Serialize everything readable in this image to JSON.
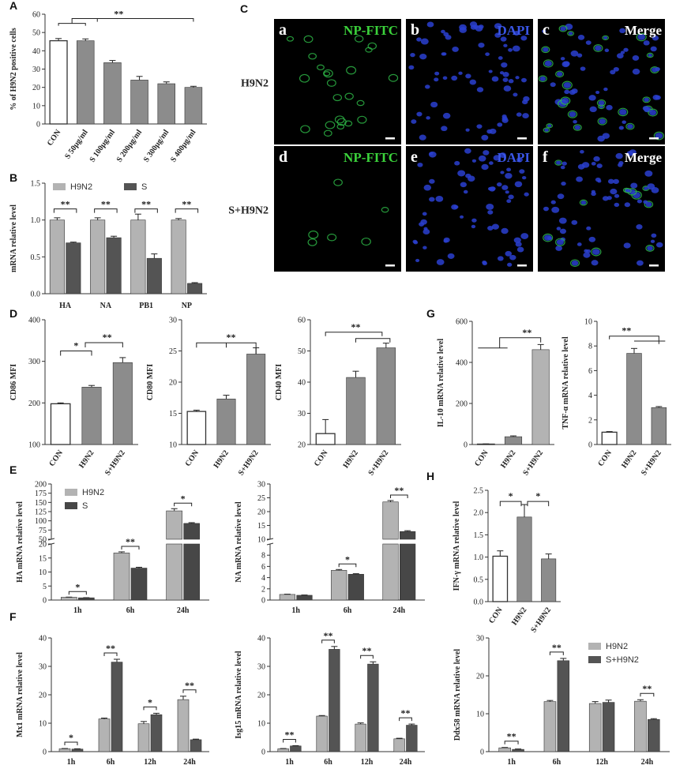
{
  "panels": [
    {
      "key": "A",
      "labels": [
        "A"
      ]
    },
    {
      "key": "B",
      "labels": [
        "B"
      ]
    },
    {
      "key": "C",
      "labels": [
        "C"
      ]
    },
    {
      "key": "D",
      "labels": [
        "D"
      ]
    },
    {
      "key": "E",
      "labels": [
        "E"
      ]
    },
    {
      "key": "F",
      "labels": [
        "F"
      ]
    },
    {
      "key": "G",
      "labels": [
        "G"
      ]
    },
    {
      "key": "H",
      "labels": [
        "H"
      ]
    }
  ],
  "colors": {
    "white": "#ffffff",
    "light": "#b3b3b3",
    "mid": "#8c8c8c",
    "dark": "#545454",
    "darker": "#474747",
    "axis": "#333333"
  },
  "micrographs": {
    "rows": [
      "H9N2",
      "S+H9N2"
    ],
    "tiles": [
      {
        "letter": "a",
        "label": "NP-FITC",
        "color": "#3bd23b",
        "stain": "fitc",
        "density": 0.35
      },
      {
        "letter": "b",
        "label": "DAPI",
        "color": "#3a56e6",
        "stain": "dapi",
        "density": 1
      },
      {
        "letter": "c",
        "label": "Merge",
        "color": "#ffffff",
        "stain": "merge",
        "density": 0.35
      },
      {
        "letter": "d",
        "label": "NP-FITC",
        "color": "#3bd23b",
        "stain": "fitc",
        "density": 0.12
      },
      {
        "letter": "e",
        "label": "DAPI",
        "color": "#3a56e6",
        "stain": "dapi",
        "density": 1
      },
      {
        "letter": "f",
        "label": "Merge",
        "color": "#ffffff",
        "stain": "merge",
        "density": 0.12
      }
    ]
  },
  "chart_data": [
    {
      "id": "A",
      "type": "bar",
      "categories": [
        "CON",
        "S 50μg/ml",
        "S 100μg/ml",
        "S 200μg/ml",
        "S 300μg/ml",
        "S 400μg/ml"
      ],
      "values": [
        45.5,
        45.5,
        33.5,
        24,
        22,
        20
      ],
      "errors": [
        1.2,
        1.0,
        1.2,
        2.0,
        1.0,
        0.6
      ],
      "colors": [
        "white",
        "mid",
        "mid",
        "mid",
        "mid",
        "mid"
      ],
      "ylabel": "% of H9N2 positive cells",
      "ylim": [
        0,
        60
      ],
      "yticks": [
        "0",
        "10",
        "20",
        "30",
        "40",
        "50",
        "60"
      ],
      "sig": [
        {
          "text": "**",
          "type": "double",
          "a": [
            0,
            1
          ],
          "b": [
            1,
            5
          ]
        }
      ]
    },
    {
      "id": "B",
      "type": "bar",
      "categories": [
        "HA",
        "NA",
        "PB1",
        "NP"
      ],
      "series": [
        {
          "name": "H9N2",
          "values": [
            1.0,
            1.0,
            1.0,
            1.0
          ],
          "errors": [
            0.03,
            0.03,
            0.08,
            0.02
          ]
        },
        {
          "name": "S",
          "values": [
            0.69,
            0.76,
            0.48,
            0.14
          ],
          "errors": [
            0.01,
            0.02,
            0.06,
            0.01
          ]
        }
      ],
      "ylabel": "mRNA relative level",
      "ylim": [
        0,
        1.5
      ],
      "yticks": [
        "0.0",
        "0.5",
        "1.0",
        "1.5"
      ],
      "legend": "top",
      "sig": [
        {
          "text": "**",
          "pairs": [
            0,
            1,
            2,
            3
          ]
        }
      ]
    },
    {
      "id": "D1",
      "type": "bar",
      "categories": [
        "CON",
        "H9N2",
        "S+H9N2"
      ],
      "values": [
        198,
        238,
        297
      ],
      "errors": [
        2,
        4,
        12
      ],
      "colors": [
        "white",
        "mid",
        "mid"
      ],
      "ylabel": "CD86 MFI",
      "ylim": [
        100,
        400
      ],
      "yticks": [
        "100",
        "200",
        "300",
        "400"
      ],
      "sig": [
        {
          "text": "*",
          "a": 0,
          "b": [
            1
          ]
        },
        {
          "text": "**",
          "a": 1,
          "b": [
            2
          ]
        }
      ]
    },
    {
      "id": "D2",
      "type": "bar",
      "categories": [
        "CON",
        "H9N2",
        "S+H9N2"
      ],
      "values": [
        15.3,
        17.3,
        24.5
      ],
      "errors": [
        0.2,
        0.6,
        1.0
      ],
      "colors": [
        "white",
        "mid",
        "mid"
      ],
      "ylabel": "CD80 MFI",
      "ylim": [
        10,
        30
      ],
      "yticks": [
        "10",
        "15",
        "20",
        "25",
        "30"
      ],
      "sig": [
        {
          "text": "**",
          "a": 0,
          "b": [
            1,
            2
          ]
        }
      ]
    },
    {
      "id": "D3",
      "type": "bar",
      "categories": [
        "CON",
        "H9N2",
        "S+H9N2"
      ],
      "values": [
        23.5,
        41.5,
        51
      ],
      "errors": [
        4.5,
        2,
        1.5
      ],
      "colors": [
        "white",
        "mid",
        "mid"
      ],
      "ylabel": "CD40 MFI",
      "ylim": [
        20,
        60
      ],
      "yticks": [
        "20",
        "30",
        "40",
        "50",
        "60"
      ],
      "sig": [
        {
          "text": "**",
          "a": [
            0,
            1
          ],
          "b": [
            2
          ]
        }
      ]
    },
    {
      "id": "G1",
      "type": "bar",
      "categories": [
        "CON",
        "H9N2",
        "S+H9N2"
      ],
      "values": [
        2,
        38,
        462
      ],
      "errors": [
        1,
        4,
        25
      ],
      "colors": [
        "white",
        "mid",
        "light"
      ],
      "ylabel": "IL-10 mRNA relative level",
      "ylim": [
        0,
        600
      ],
      "yticks": [
        "0",
        "200",
        "400",
        "600"
      ],
      "sig": [
        {
          "text": "**",
          "a": [
            0,
            1
          ],
          "b": [
            2
          ]
        }
      ]
    },
    {
      "id": "G2",
      "type": "bar",
      "categories": [
        "CON",
        "H9N2",
        "S+H9N2"
      ],
      "values": [
        1.0,
        7.4,
        3.0
      ],
      "errors": [
        0.05,
        0.4,
        0.08
      ],
      "colors": [
        "white",
        "mid",
        "mid"
      ],
      "ylabel": "TNF-α mRNA relative level",
      "ylim": [
        0,
        10
      ],
      "yticks": [
        "0",
        "2",
        "4",
        "6",
        "8",
        "10"
      ],
      "sig": [
        {
          "text": "**",
          "a": 0,
          "b": [
            1,
            2
          ]
        }
      ]
    },
    {
      "id": "H",
      "type": "bar",
      "categories": [
        "CON",
        "H9N2",
        "S+H9N2"
      ],
      "values": [
        1.02,
        1.9,
        0.96
      ],
      "errors": [
        0.12,
        0.28,
        0.11
      ],
      "colors": [
        "white",
        "mid",
        "mid"
      ],
      "ylabel": "IFN-γ mRNA relative level",
      "ylim": [
        0,
        2.5
      ],
      "yticks": [
        "0.0",
        "0.5",
        "1.0",
        "1.5",
        "2.0",
        "2.5"
      ],
      "sig": [
        {
          "text": "*",
          "a": 0,
          "b": [
            1
          ]
        },
        {
          "text": "*",
          "a": 1,
          "b": [
            2
          ]
        }
      ]
    },
    {
      "id": "E1",
      "type": "bar",
      "categories": [
        "1h",
        "6h",
        "24h"
      ],
      "series": [
        {
          "name": "H9N2",
          "values": [
            1.0,
            16.8,
            127
          ],
          "errors": [
            0.05,
            0.4,
            6
          ]
        },
        {
          "name": "S",
          "values": [
            0.8,
            11.4,
            93
          ],
          "errors": [
            0.05,
            0.3,
            2
          ]
        }
      ],
      "ylabel": "HA mRNA relative level",
      "broken_axis": {
        "lower": [
          0,
          20
        ],
        "upper": [
          50,
          200
        ]
      },
      "yticks_lower": [
        "0",
        "5",
        "10",
        "15",
        "20"
      ],
      "yticks_upper": [
        "50",
        "75",
        "100",
        "125",
        "150",
        "175",
        "200"
      ],
      "legend": "top-left",
      "sig": [
        {
          "text": "*",
          "pair": 0
        },
        {
          "text": "**",
          "pair": 1
        },
        {
          "text": "*",
          "pair": 2
        }
      ]
    },
    {
      "id": "E2",
      "type": "bar",
      "categories": [
        "1h",
        "6h",
        "24h"
      ],
      "series": [
        {
          "name": "H9N2",
          "values": [
            1.0,
            5.3,
            23.5
          ],
          "errors": [
            0.05,
            0.15,
            0.5
          ]
        },
        {
          "name": "S",
          "values": [
            0.85,
            4.6,
            12.8
          ],
          "errors": [
            0.05,
            0.1,
            0.3
          ]
        }
      ],
      "ylabel": "NA mRNA relative level",
      "broken_axis": {
        "lower": [
          0,
          10
        ],
        "upper": [
          10,
          30
        ]
      },
      "yticks_lower": [
        "0",
        "2",
        "4",
        "6",
        "8"
      ],
      "yticks_upper": [
        "10",
        "15",
        "20",
        "25",
        "30"
      ],
      "sig": [
        {
          "text": "*",
          "pair": 1
        },
        {
          "text": "**",
          "pair": 2
        }
      ]
    },
    {
      "id": "F1",
      "type": "bar",
      "categories": [
        "1h",
        "6h",
        "12h",
        "24h"
      ],
      "series": [
        {
          "name": "H9N2",
          "values": [
            1.0,
            11.5,
            9.8,
            18.3
          ],
          "errors": [
            0.1,
            0.3,
            0.8,
            1.2
          ]
        },
        {
          "name": "S+H9N2",
          "values": [
            0.9,
            31.5,
            13.0,
            4.2
          ],
          "errors": [
            0.1,
            1.0,
            0.5,
            0.2
          ]
        }
      ],
      "ylabel": "Mx1 mRNA relative level",
      "ylim": [
        0,
        40
      ],
      "yticks": [
        "0",
        "10",
        "20",
        "30",
        "40"
      ],
      "sig": [
        {
          "text": "*",
          "pair": 0
        },
        {
          "text": "**",
          "pair": 1
        },
        {
          "text": "*",
          "pair": 2
        },
        {
          "text": "**",
          "pair": 3
        }
      ]
    },
    {
      "id": "F2",
      "type": "bar",
      "categories": [
        "1h",
        "6h",
        "12h",
        "24h"
      ],
      "series": [
        {
          "name": "H9N2",
          "values": [
            1.0,
            12.5,
            9.7,
            4.5
          ],
          "errors": [
            0.1,
            0.2,
            0.4,
            0.2
          ]
        },
        {
          "name": "S+H9N2",
          "values": [
            2.0,
            36.0,
            30.8,
            9.3
          ],
          "errors": [
            0.1,
            1.0,
            0.8,
            0.4
          ]
        }
      ],
      "ylabel": "Isg15 mRNA relative level",
      "ylim": [
        0,
        40
      ],
      "yticks": [
        "0",
        "10",
        "20",
        "30",
        "40"
      ],
      "sig": [
        {
          "text": "**",
          "pair": 0
        },
        {
          "text": "**",
          "pair": 1
        },
        {
          "text": "**",
          "pair": 2
        },
        {
          "text": "**",
          "pair": 3
        }
      ]
    },
    {
      "id": "F3",
      "type": "bar",
      "categories": [
        "1h",
        "6h",
        "12h",
        "24h"
      ],
      "series": [
        {
          "name": "H9N2",
          "values": [
            1.0,
            13.2,
            12.7,
            13.3
          ],
          "errors": [
            0.1,
            0.3,
            0.5,
            0.4
          ]
        },
        {
          "name": "S+H9N2",
          "values": [
            0.6,
            24.0,
            13.0,
            8.5
          ],
          "errors": [
            0.1,
            0.6,
            0.6,
            0.2
          ]
        }
      ],
      "ylabel": "Ddx58 mRNA relative level",
      "ylim": [
        0,
        30
      ],
      "yticks": [
        "0",
        "10",
        "20",
        "30"
      ],
      "legend": "top-right",
      "sig": [
        {
          "text": "**",
          "pair": 0
        },
        {
          "text": "**",
          "pair": 1
        },
        {
          "text": "**",
          "pair": 3
        }
      ]
    }
  ]
}
